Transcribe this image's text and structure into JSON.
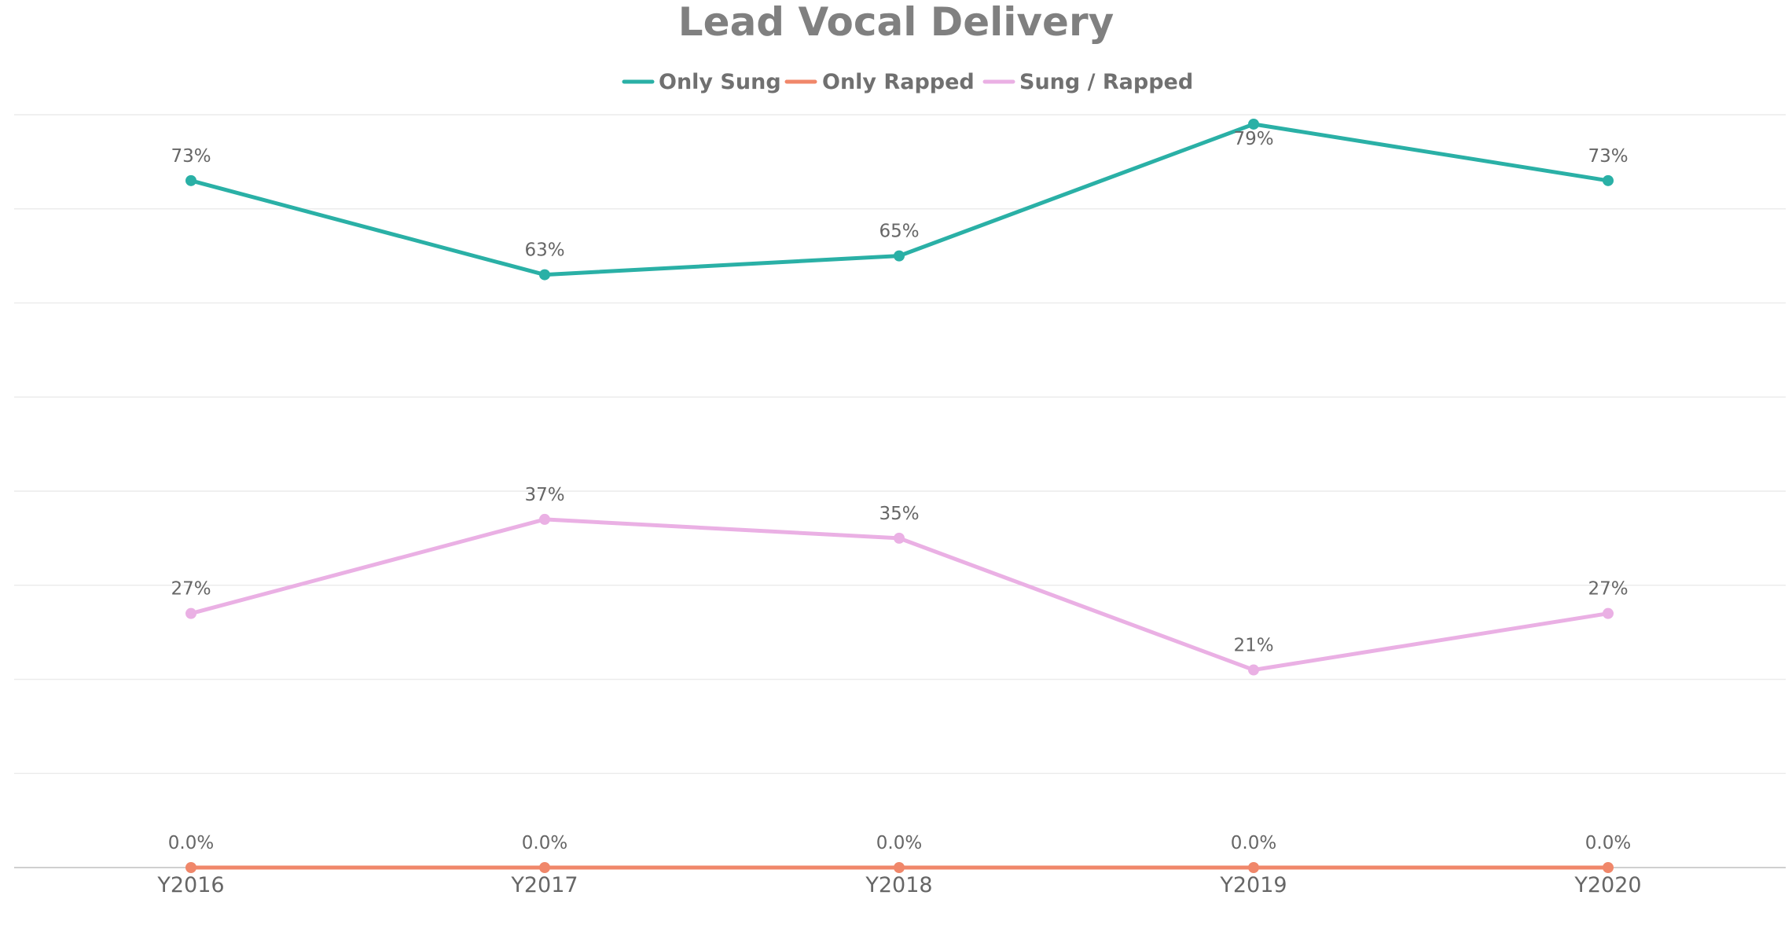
{
  "chart_data": {
    "type": "line",
    "title": "Lead Vocal Delivery",
    "categories": [
      "Y2016",
      "Y2017",
      "Y2018",
      "Y2019",
      "Y2020"
    ],
    "series": [
      {
        "name": "Only Sung",
        "color": "#2ab0a6",
        "values": [
          73,
          63,
          65,
          79,
          73
        ],
        "labels": [
          "73%",
          "63%",
          "65%",
          "79%",
          "73%"
        ]
      },
      {
        "name": "Only Rapped",
        "color": "#f0876a",
        "values": [
          0,
          0,
          0,
          0,
          0
        ],
        "labels": [
          "0.0%",
          "0.0%",
          "0.0%",
          "0.0%",
          "0.0%"
        ]
      },
      {
        "name": "Sung / Rapped",
        "color": "#eab0e4",
        "values": [
          27,
          37,
          35,
          21,
          27
        ],
        "labels": [
          "27%",
          "37%",
          "35%",
          "21%",
          "27%"
        ]
      }
    ],
    "ylim": [
      0,
      80
    ],
    "grid": true,
    "legend_position": "top-center",
    "y_axis_labels_visible": false
  }
}
